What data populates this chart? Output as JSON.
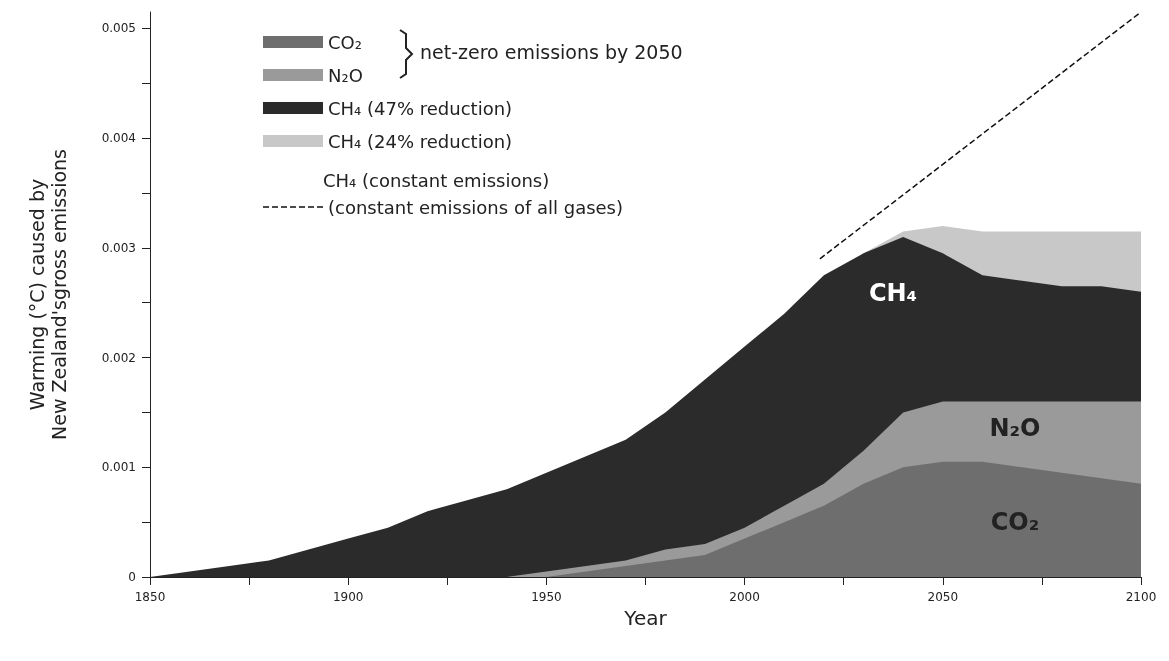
{
  "chart_data": {
    "type": "area",
    "stacked": true,
    "xlabel": "Year",
    "ylabel": "Warming (°C) caused by\nNew Zealand'sgross emissions",
    "x": [
      1850,
      1860,
      1870,
      1880,
      1890,
      1900,
      1910,
      1920,
      1930,
      1940,
      1950,
      1960,
      1970,
      1980,
      1990,
      2000,
      2010,
      2020,
      2030,
      2040,
      2050,
      2060,
      2070,
      2080,
      2090,
      2100
    ],
    "xlim": [
      1850,
      2100
    ],
    "xticks": [
      1850,
      {
        "value": 1875,
        "label": null
      },
      1900,
      {
        "value": 1925,
        "label": null
      },
      1950,
      {
        "value": 1975,
        "label": null
      },
      2000,
      {
        "value": 2025,
        "label": null
      },
      2050,
      {
        "value": 2075,
        "label": null
      },
      2100
    ],
    "ylim": [
      0,
      0.00515
    ],
    "yticks": [
      0,
      {
        "value": 0.0005,
        "label": null
      },
      0.001,
      {
        "value": 0.0015,
        "label": null
      },
      0.002,
      {
        "value": 0.0025,
        "label": null
      },
      0.003,
      {
        "value": 0.0035,
        "label": null
      },
      0.004,
      {
        "value": 0.0045,
        "label": null
      },
      0.005
    ],
    "grid": false,
    "legend": "top left",
    "series": [
      {
        "name": "CO₂",
        "color": "#6e6e6e",
        "values": [
          0,
          0,
          0,
          0,
          0,
          0,
          0,
          0,
          0,
          0,
          0,
          5e-05,
          0.0001,
          0.00015,
          0.0002,
          0.00035,
          0.0005,
          0.00065,
          0.00085,
          0.001,
          0.00105,
          0.00105,
          0.001,
          0.00095,
          0.0009,
          0.00085
        ]
      },
      {
        "name": "N₂O",
        "color": "#9a9a9a",
        "values": [
          0,
          0,
          0,
          0,
          0,
          0,
          0,
          0,
          0,
          0,
          5e-05,
          5e-05,
          5e-05,
          0.0001,
          0.0001,
          0.0001,
          0.00015,
          0.0002,
          0.0003,
          0.0005,
          0.00055,
          0.00055,
          0.0006,
          0.00065,
          0.0007,
          0.00075
        ]
      },
      {
        "name": "CH₄ (47% reduction)",
        "color": "#2b2b2b",
        "values": [
          0,
          5e-05,
          0.0001,
          0.00015,
          0.00025,
          0.00035,
          0.00045,
          0.0006,
          0.0007,
          0.0008,
          0.0009,
          0.001,
          0.0011,
          0.00125,
          0.0015,
          0.00165,
          0.00175,
          0.0019,
          0.0018,
          0.0016,
          0.00135,
          0.00115,
          0.0011,
          0.00105,
          0.00105,
          0.001
        ]
      },
      {
        "name": "CH₄ (24% reduction)",
        "color": "#c8c8c8",
        "values": [
          null,
          null,
          null,
          null,
          null,
          null,
          null,
          null,
          null,
          null,
          null,
          null,
          null,
          null,
          null,
          null,
          null,
          null,
          0,
          5e-05,
          0.00025,
          0.0004,
          0.00045,
          0.0005,
          0.0005,
          0.00055
        ]
      },
      {
        "name": "(constant emissions of all gases)",
        "type": "line",
        "line_style": "dashed",
        "color": "#111111",
        "x": [
          2019,
          2100
        ],
        "values": [
          0.0029,
          0.00515
        ]
      }
    ],
    "annotations": [
      "CH₄",
      "N₂O",
      "CO₂",
      "net-zero emissions by 2050",
      "CH₄ (constant emissions)"
    ]
  }
}
